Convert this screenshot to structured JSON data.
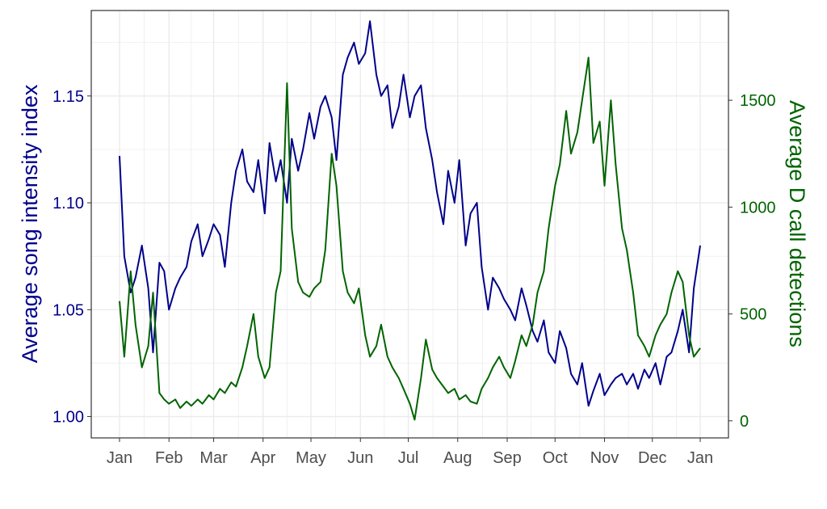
{
  "chart_data": {
    "type": "line",
    "title": "",
    "xlabel": "",
    "ylabel_left": "Average song intensity index",
    "ylabel_right": "Average D call detections",
    "x_tick_labels": [
      "Jan",
      "Feb",
      "Mar",
      "Apr",
      "May",
      "Jun",
      "Jul",
      "Aug",
      "Sep",
      "Oct",
      "Nov",
      "Dec",
      "Jan"
    ],
    "y_left": {
      "lim": [
        0.99,
        1.19
      ],
      "ticks": [
        "1.00",
        "1.05",
        "1.10",
        "1.15"
      ]
    },
    "y_right": {
      "lim": [
        -80,
        1920
      ],
      "ticks": [
        "0",
        "500",
        "1000",
        "1500"
      ]
    },
    "grid": true,
    "colors": {
      "song": "#00008B",
      "dcall": "#006400",
      "axis_left_text": "#00008B",
      "axis_right_text": "#006400",
      "tick_text": "#4D4D4D",
      "grid": "#EBEBEB",
      "panel_border": "#333333"
    },
    "series": [
      {
        "key": "song",
        "axis": "left",
        "x": [
          0,
          3,
          7,
          10,
          14,
          18,
          21,
          25,
          28,
          31,
          35,
          38,
          42,
          45,
          49,
          52,
          56,
          59,
          63,
          66,
          70,
          73,
          77,
          80,
          84,
          87,
          91,
          94,
          98,
          101,
          105,
          108,
          112,
          115,
          119,
          122,
          126,
          129,
          133,
          136,
          140,
          143,
          147,
          150,
          154,
          157,
          161,
          164,
          168,
          171,
          175,
          178,
          182,
          185,
          189,
          192,
          196,
          199,
          203,
          206,
          210,
          213,
          217,
          220,
          224,
          227,
          231,
          234,
          238,
          241,
          245,
          248,
          252,
          255,
          259,
          262,
          266,
          269,
          273,
          276,
          280,
          283,
          287,
          290,
          294,
          297,
          301,
          304,
          308,
          311,
          315,
          318,
          322,
          325,
          329,
          332,
          336,
          339,
          343,
          346,
          350,
          353,
          357,
          360,
          364
        ],
        "values": [
          1.122,
          1.075,
          1.058,
          1.065,
          1.08,
          1.06,
          1.03,
          1.072,
          1.068,
          1.05,
          1.06,
          1.065,
          1.07,
          1.082,
          1.09,
          1.075,
          1.083,
          1.09,
          1.085,
          1.07,
          1.1,
          1.115,
          1.125,
          1.11,
          1.105,
          1.12,
          1.095,
          1.128,
          1.11,
          1.12,
          1.1,
          1.13,
          1.115,
          1.125,
          1.142,
          1.13,
          1.145,
          1.15,
          1.14,
          1.12,
          1.16,
          1.168,
          1.175,
          1.165,
          1.17,
          1.185,
          1.16,
          1.15,
          1.155,
          1.135,
          1.145,
          1.16,
          1.14,
          1.15,
          1.155,
          1.135,
          1.12,
          1.105,
          1.09,
          1.115,
          1.1,
          1.12,
          1.08,
          1.095,
          1.1,
          1.07,
          1.05,
          1.065,
          1.06,
          1.055,
          1.05,
          1.045,
          1.06,
          1.052,
          1.04,
          1.035,
          1.045,
          1.03,
          1.025,
          1.04,
          1.032,
          1.02,
          1.015,
          1.025,
          1.005,
          1.012,
          1.02,
          1.01,
          1.015,
          1.018,
          1.02,
          1.015,
          1.02,
          1.013,
          1.022,
          1.018,
          1.025,
          1.015,
          1.028,
          1.03,
          1.04,
          1.05,
          1.03,
          1.06,
          1.08
        ]
      },
      {
        "key": "dcall",
        "axis": "right",
        "x": [
          0,
          3,
          7,
          10,
          14,
          18,
          21,
          25,
          28,
          31,
          35,
          38,
          42,
          45,
          49,
          52,
          56,
          59,
          63,
          66,
          70,
          73,
          77,
          80,
          84,
          87,
          91,
          94,
          98,
          101,
          105,
          108,
          112,
          115,
          119,
          122,
          126,
          129,
          133,
          136,
          140,
          143,
          147,
          150,
          154,
          157,
          161,
          164,
          168,
          171,
          175,
          178,
          182,
          185,
          189,
          192,
          196,
          199,
          203,
          206,
          210,
          213,
          217,
          220,
          224,
          227,
          231,
          234,
          238,
          241,
          245,
          248,
          252,
          255,
          259,
          262,
          266,
          269,
          273,
          276,
          280,
          283,
          287,
          290,
          294,
          297,
          301,
          304,
          308,
          311,
          315,
          318,
          322,
          325,
          329,
          332,
          336,
          339,
          343,
          346,
          350,
          353,
          357,
          360,
          364
        ],
        "values": [
          560,
          300,
          700,
          450,
          250,
          350,
          600,
          130,
          100,
          80,
          100,
          60,
          90,
          70,
          100,
          80,
          120,
          100,
          150,
          130,
          180,
          160,
          250,
          350,
          500,
          300,
          200,
          250,
          600,
          700,
          1580,
          900,
          650,
          600,
          580,
          620,
          650,
          800,
          1250,
          1100,
          700,
          600,
          550,
          620,
          400,
          300,
          350,
          450,
          300,
          250,
          200,
          150,
          80,
          5,
          200,
          380,
          240,
          200,
          160,
          130,
          150,
          100,
          120,
          90,
          80,
          150,
          200,
          250,
          300,
          250,
          200,
          280,
          400,
          350,
          450,
          600,
          700,
          900,
          1100,
          1200,
          1450,
          1250,
          1350,
          1500,
          1700,
          1300,
          1400,
          1100,
          1500,
          1200,
          900,
          800,
          600,
          400,
          350,
          300,
          400,
          450,
          500,
          600,
          700,
          650,
          400,
          300,
          340
        ]
      }
    ]
  }
}
